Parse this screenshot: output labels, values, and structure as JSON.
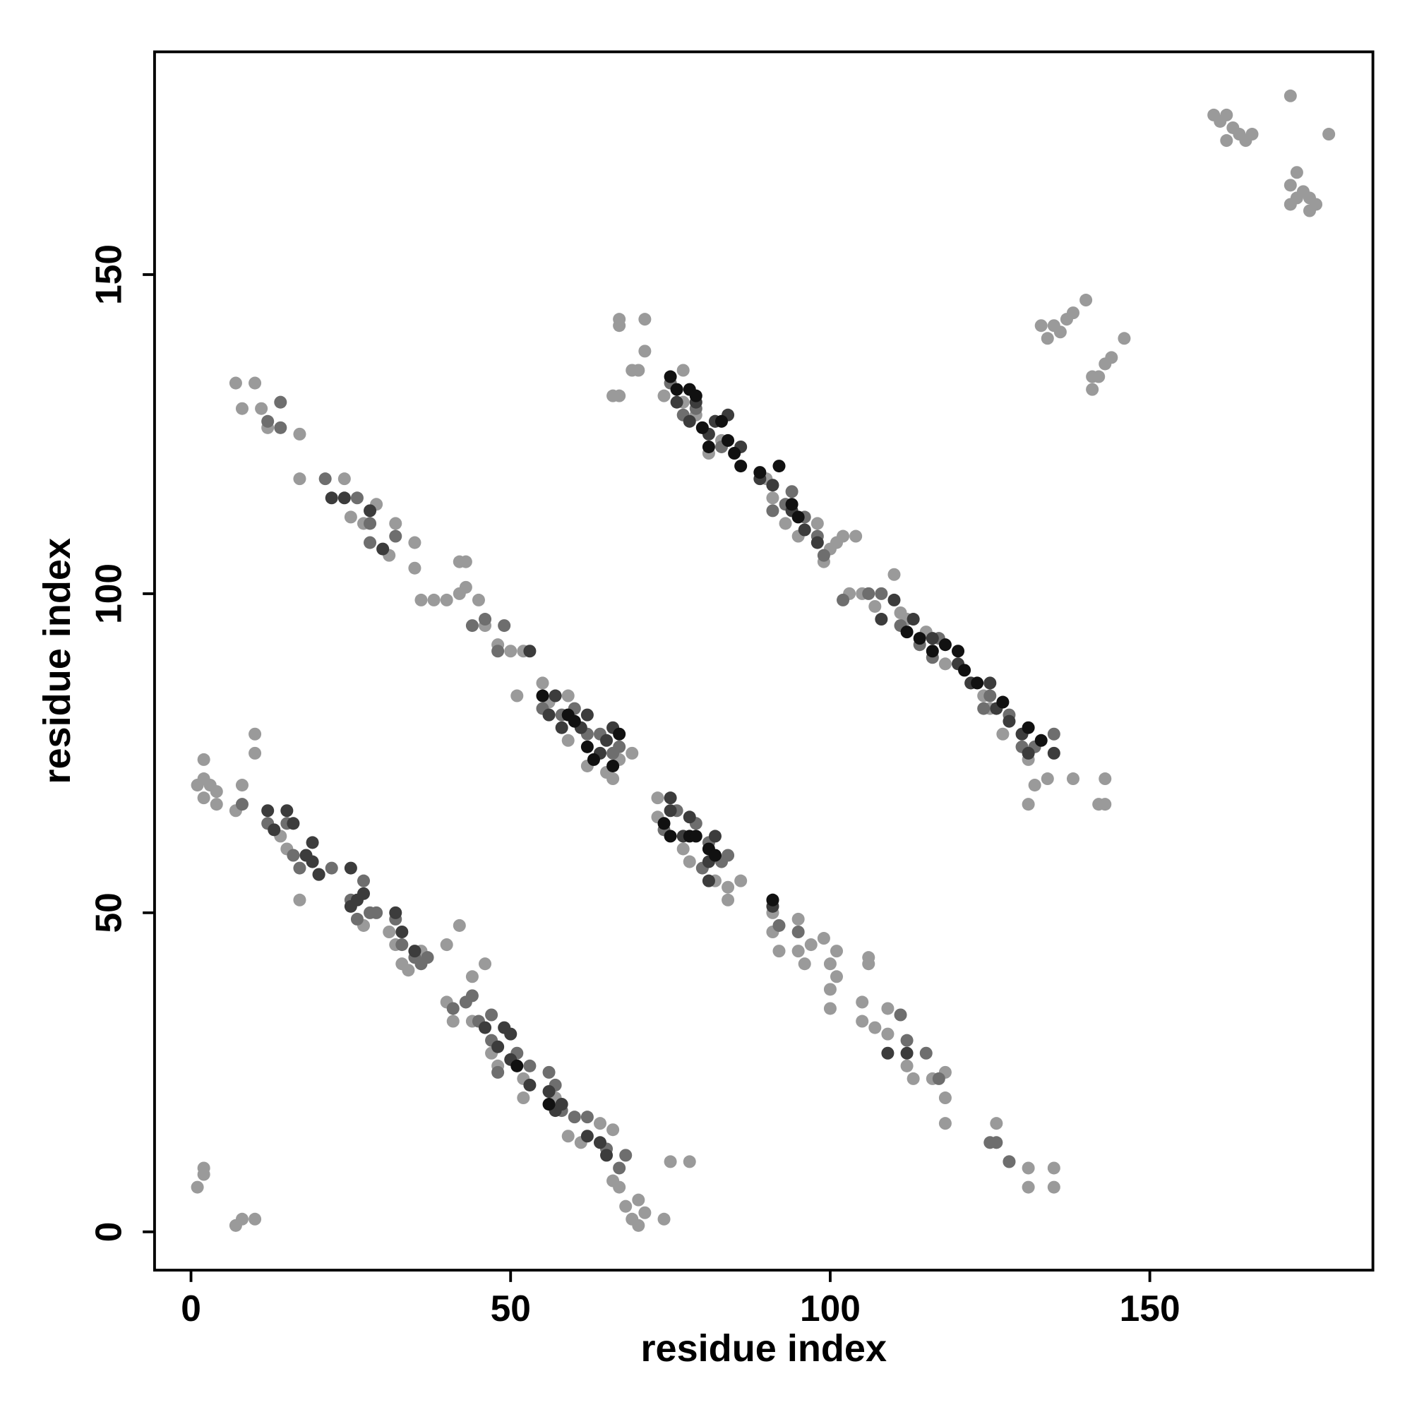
{
  "chart_data": {
    "type": "scatter",
    "x_label": "residue index",
    "y_label": "residue index",
    "xlim": [
      -5.7,
      184.9
    ],
    "ylim": [
      -6,
      184.9
    ],
    "xticks": [
      0,
      50,
      100,
      150
    ],
    "yticks": [
      0,
      50,
      100,
      150
    ],
    "series": [
      {
        "color": "#9a9a9a",
        "x": [
          1,
          2,
          3,
          4,
          2,
          4,
          2,
          8,
          7,
          10,
          10,
          14,
          15,
          17,
          27,
          31,
          32,
          33,
          34,
          36,
          40,
          42,
          44,
          46,
          40,
          41,
          44,
          47,
          48,
          52,
          52,
          57,
          59,
          61,
          64,
          66,
          66,
          67,
          68,
          69,
          70,
          70,
          71,
          74,
          75,
          78,
          1,
          2,
          2,
          7,
          8,
          10,
          7,
          10,
          8,
          11,
          12,
          17,
          17,
          24,
          25,
          27,
          29,
          31,
          32,
          35,
          35,
          36,
          38,
          40,
          42,
          43,
          45,
          42,
          43,
          46,
          48,
          50,
          52,
          51,
          55,
          56,
          59,
          59,
          62,
          65,
          66,
          67,
          69,
          73,
          73,
          77,
          78,
          82,
          84,
          84,
          86,
          91,
          91,
          92,
          95,
          95,
          96,
          97,
          99,
          100,
          100,
          100,
          101,
          101,
          106,
          106,
          105,
          105,
          107,
          109,
          109,
          112,
          113,
          116,
          118,
          118,
          118,
          126,
          128,
          131,
          131,
          135,
          135,
          67,
          67,
          71,
          71,
          66,
          67,
          69,
          70,
          74,
          77,
          77,
          79,
          80,
          81,
          83,
          90,
          91,
          93,
          95,
          98,
          99,
          100,
          101,
          102,
          104,
          103,
          105,
          107,
          110,
          111,
          112,
          115,
          118,
          124,
          125,
          127,
          131,
          131,
          132,
          134,
          138,
          142,
          143,
          143,
          133,
          134,
          135,
          136,
          137,
          138,
          140,
          146,
          141,
          141,
          142,
          143,
          144,
          160,
          161,
          162,
          163,
          164,
          165,
          166,
          162,
          172,
          178,
          172,
          173,
          174,
          175,
          176,
          172,
          175,
          173
        ],
        "values": [
          70,
          71,
          70,
          69,
          68,
          67,
          74,
          70,
          66,
          78,
          75,
          62,
          60,
          52,
          48,
          47,
          45,
          42,
          41,
          44,
          45,
          48,
          40,
          42,
          36,
          33,
          33,
          28,
          26,
          24,
          21,
          21,
          15,
          14,
          17,
          16,
          8,
          7,
          4,
          2,
          5,
          1,
          3,
          2,
          11,
          11,
          7,
          9,
          10,
          1,
          2,
          2,
          133,
          133,
          129,
          129,
          126,
          125,
          118,
          118,
          112,
          111,
          114,
          106,
          111,
          104,
          108,
          99,
          99,
          99,
          100,
          101,
          99,
          105,
          105,
          95,
          92,
          91,
          91,
          84,
          86,
          83,
          84,
          77,
          73,
          72,
          71,
          74,
          75,
          65,
          68,
          60,
          58,
          55,
          54,
          52,
          55,
          50,
          47,
          44,
          49,
          44,
          42,
          45,
          46,
          42,
          38,
          35,
          40,
          44,
          43,
          42,
          36,
          33,
          32,
          35,
          31,
          26,
          24,
          24,
          25,
          21,
          17,
          17,
          11,
          10,
          7,
          10,
          7,
          143,
          142,
          143,
          138,
          131,
          131,
          135,
          135,
          131,
          135,
          130,
          128,
          126,
          122,
          124,
          118,
          115,
          111,
          109,
          111,
          105,
          107,
          108,
          109,
          109,
          100,
          100,
          98,
          103,
          97,
          96,
          94,
          89,
          84,
          82,
          78,
          74,
          67,
          70,
          71,
          71,
          67,
          67,
          71,
          142,
          140,
          142,
          141,
          143,
          144,
          146,
          140,
          134,
          132,
          134,
          136,
          137,
          175,
          174,
          175,
          173,
          172,
          171,
          172,
          171,
          178,
          172,
          164,
          166,
          163,
          162,
          161,
          161,
          160,
          162
        ]
      },
      {
        "color": "#6e6e6e",
        "x": [
          8,
          12,
          15,
          16,
          17,
          20,
          22,
          25,
          26,
          27,
          28,
          29,
          32,
          33,
          35,
          36,
          37,
          41,
          43,
          44,
          45,
          47,
          47,
          48,
          51,
          53,
          56,
          57,
          58,
          60,
          62,
          65,
          67,
          68,
          12,
          14,
          14,
          21,
          26,
          28,
          28,
          32,
          44,
          46,
          49,
          48,
          55,
          58,
          60,
          62,
          64,
          66,
          67,
          74,
          76,
          79,
          80,
          81,
          83,
          84,
          91,
          92,
          95,
          111,
          112,
          115,
          117,
          125,
          126,
          128,
          75,
          77,
          79,
          82,
          83,
          91,
          93,
          94,
          96,
          98,
          99,
          102,
          106,
          108,
          111,
          114,
          116,
          117,
          124,
          125,
          128,
          130,
          132,
          135
        ],
        "values": [
          67,
          64,
          64,
          59,
          57,
          56,
          57,
          52,
          49,
          55,
          50,
          50,
          49,
          45,
          43,
          42,
          43,
          35,
          36,
          37,
          33,
          34,
          30,
          25,
          28,
          26,
          25,
          23,
          19,
          18,
          18,
          13,
          10,
          12,
          127,
          126,
          130,
          118,
          115,
          111,
          108,
          109,
          95,
          96,
          95,
          91,
          82,
          81,
          82,
          78,
          78,
          75,
          76,
          63,
          66,
          64,
          57,
          61,
          58,
          59,
          52,
          48,
          47,
          34,
          30,
          28,
          24,
          14,
          14,
          11,
          133,
          128,
          129,
          127,
          123,
          113,
          114,
          116,
          112,
          109,
          106,
          99,
          100,
          100,
          95,
          92,
          90,
          93,
          82,
          84,
          81,
          76,
          76,
          78
        ]
      },
      {
        "color": "#3c3c3c",
        "x": [
          12,
          13,
          15,
          16,
          18,
          19,
          19,
          20,
          25,
          25,
          26,
          27,
          32,
          33,
          35,
          46,
          48,
          49,
          50,
          50,
          53,
          56,
          57,
          58,
          62,
          64,
          65,
          22,
          24,
          28,
          30,
          53,
          56,
          57,
          58,
          61,
          62,
          64,
          65,
          66,
          75,
          75,
          77,
          78,
          81,
          81,
          82,
          91,
          109,
          112,
          76,
          78,
          79,
          81,
          82,
          84,
          86,
          89,
          91,
          94,
          96,
          98,
          108,
          110,
          113,
          116,
          120,
          122,
          125,
          126,
          128,
          130,
          131,
          135
        ],
        "values": [
          66,
          63,
          66,
          64,
          59,
          61,
          58,
          56,
          57,
          51,
          52,
          53,
          50,
          47,
          44,
          32,
          29,
          32,
          31,
          27,
          23,
          22,
          19,
          20,
          15,
          14,
          12,
          115,
          115,
          113,
          107,
          91,
          81,
          84,
          79,
          79,
          81,
          75,
          77,
          79,
          66,
          68,
          62,
          65,
          55,
          58,
          62,
          51,
          28,
          28,
          130,
          127,
          130,
          125,
          127,
          128,
          123,
          118,
          117,
          113,
          110,
          108,
          96,
          99,
          96,
          93,
          89,
          86,
          86,
          82,
          80,
          78,
          75,
          75
        ]
      },
      {
        "color": "#111111",
        "x": [
          51,
          56,
          55,
          59,
          60,
          62,
          63,
          66,
          67,
          74,
          75,
          78,
          79,
          81,
          82,
          91,
          75,
          76,
          78,
          79,
          80,
          81,
          83,
          84,
          85,
          86,
          89,
          92,
          94,
          95,
          112,
          114,
          116,
          118,
          120,
          121,
          123,
          127,
          131,
          133
        ],
        "values": [
          26,
          20,
          84,
          81,
          80,
          76,
          74,
          73,
          78,
          64,
          62,
          62,
          62,
          60,
          59,
          52,
          134,
          132,
          132,
          131,
          126,
          123,
          127,
          124,
          122,
          120,
          119,
          120,
          114,
          112,
          94,
          93,
          91,
          92,
          91,
          88,
          86,
          83,
          79,
          77
        ]
      }
    ]
  }
}
